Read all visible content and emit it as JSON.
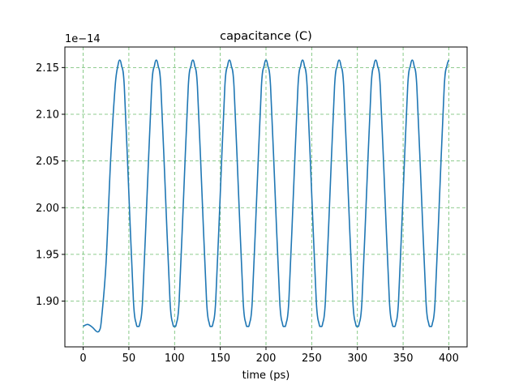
{
  "chart_data": {
    "type": "line",
    "title": "capacitance (C)",
    "xlabel": "time (ps)",
    "ylabel": "",
    "y_offset_label": "1e−14",
    "xlim": [
      -20,
      420
    ],
    "ylim": [
      1.851,
      2.172
    ],
    "x_ticks": [
      0,
      50,
      100,
      150,
      200,
      250,
      300,
      350,
      400
    ],
    "y_ticks": [
      1.9,
      1.95,
      2.0,
      2.05,
      2.1,
      2.15
    ],
    "y_tick_labels": [
      "1.90",
      "1.95",
      "2.00",
      "2.05",
      "2.10",
      "2.15"
    ],
    "grid": true,
    "grid_color": "#2ca02c",
    "line_color": "#1f77b4",
    "series": [
      {
        "x": [
          0,
          5,
          10,
          14,
          16,
          18,
          20,
          25,
          30,
          35,
          38,
          40,
          42,
          45,
          50,
          55,
          58,
          60,
          62,
          65,
          70,
          75,
          78,
          80,
          82,
          85,
          90,
          95,
          98,
          100,
          102,
          105,
          110,
          115,
          118,
          120,
          122,
          125,
          130,
          135,
          138,
          140,
          142,
          145,
          150,
          155,
          158,
          160,
          162,
          165,
          170,
          175,
          178,
          180,
          182,
          185,
          190,
          195,
          198,
          200,
          202,
          205,
          210,
          215,
          218,
          220,
          222,
          225,
          230,
          235,
          238,
          240,
          242,
          245,
          250,
          255,
          258,
          260,
          262,
          265,
          270,
          275,
          278,
          280,
          282,
          285,
          290,
          295,
          298,
          300,
          302,
          305,
          310,
          315,
          318,
          320,
          322,
          325,
          330,
          335,
          338,
          340,
          342,
          345,
          350,
          355,
          358,
          360,
          362,
          365,
          370,
          375,
          378,
          380,
          382,
          385,
          390,
          395,
          398,
          400
        ],
        "y": [
          1.873,
          1.875,
          1.872,
          1.868,
          1.867,
          1.869,
          1.88,
          1.94,
          2.05,
          2.13,
          2.152,
          2.158,
          2.152,
          2.13,
          2.015,
          1.9,
          1.876,
          1.873,
          1.876,
          1.9,
          2.015,
          2.13,
          2.152,
          2.158,
          2.152,
          2.13,
          2.015,
          1.9,
          1.876,
          1.873,
          1.876,
          1.9,
          2.015,
          2.13,
          2.152,
          2.158,
          2.152,
          2.13,
          2.015,
          1.9,
          1.876,
          1.873,
          1.876,
          1.9,
          2.015,
          2.13,
          2.152,
          2.158,
          2.152,
          2.13,
          2.015,
          1.9,
          1.876,
          1.873,
          1.876,
          1.9,
          2.015,
          2.13,
          2.152,
          2.158,
          2.152,
          2.13,
          2.015,
          1.9,
          1.876,
          1.873,
          1.876,
          1.9,
          2.015,
          2.13,
          2.152,
          2.158,
          2.152,
          2.13,
          2.015,
          1.9,
          1.876,
          1.873,
          1.876,
          1.9,
          2.015,
          2.13,
          2.152,
          2.158,
          2.152,
          2.13,
          2.015,
          1.9,
          1.876,
          1.873,
          1.876,
          1.9,
          2.015,
          2.13,
          2.152,
          2.158,
          2.152,
          2.13,
          2.015,
          1.9,
          1.876,
          1.873,
          1.876,
          1.9,
          2.015,
          2.13,
          2.152,
          2.158,
          2.152,
          2.13,
          2.015,
          1.9,
          1.876,
          1.873,
          1.876,
          1.9,
          2.015,
          2.13,
          2.152,
          2.158
        ]
      }
    ]
  }
}
